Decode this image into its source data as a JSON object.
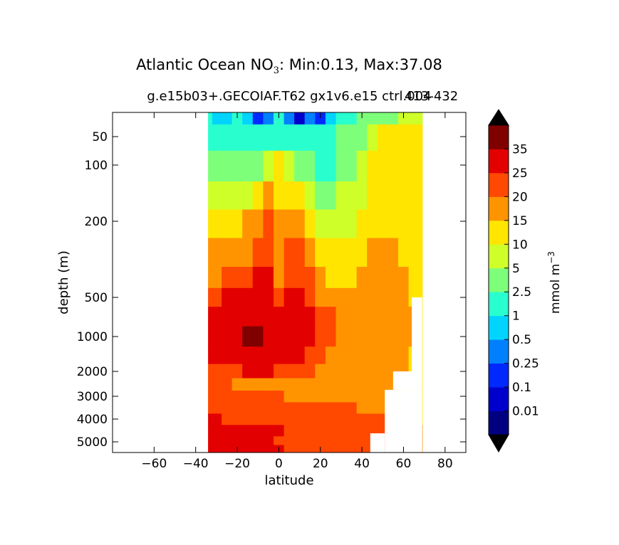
{
  "figure": {
    "title_prefix": "Atlantic Ocean NO",
    "title_sub": "3",
    "title_suffix": ": Min:0.13, Max:37.08",
    "subtitle": "g.e15b03+.GECOIAF.T62 gx1v6.e15 ctrl.004",
    "subtitle_overlap": "413-432"
  },
  "chart_data": {
    "type": "heatmap",
    "plot_style": "filled contour",
    "title": "Atlantic Ocean NO3: Min:0.13, Max:37.08",
    "subtitle": "g.e15b03+.GECOIAF.T62 gx1v6.e15 ctrl.004 413-432",
    "xlabel": "latitude",
    "ylabel": "depth (m)",
    "xlim": [
      -80,
      90
    ],
    "ylim": [
      5500,
      25
    ],
    "y_scale": "nonlinear (depth-stretched), increasing downward",
    "x_ticks": [
      -60,
      -40,
      -20,
      0,
      20,
      40,
      60,
      80
    ],
    "x_tick_labels": [
      "−60",
      "−40",
      "−20",
      "0",
      "20",
      "40",
      "60",
      "80"
    ],
    "y_ticks": [
      50,
      100,
      200,
      500,
      1000,
      2000,
      3000,
      4000,
      5000
    ],
    "y_tick_labels": [
      "50",
      "100",
      "200",
      "500",
      "1000",
      "2000",
      "3000",
      "4000",
      "5000"
    ],
    "data_extent_lat": [
      -34,
      69
    ],
    "min": 0.13,
    "max": 37.08,
    "colorbar": {
      "label": "mmol m",
      "label_exponent": "−3",
      "extend": "both",
      "levels": [
        0.01,
        0.1,
        0.25,
        0.5,
        1,
        2.5,
        5,
        10,
        15,
        20,
        25,
        35
      ],
      "tick_labels": [
        "0.01",
        "0.1",
        "0.25",
        "0.5",
        "1",
        "2.5",
        "5",
        "10",
        "15",
        "20",
        "25",
        "35"
      ],
      "colors": [
        "#000080",
        "#0000cd",
        "#0028ff",
        "#0080ff",
        "#00d4ff",
        "#29ffce",
        "#7dff7a",
        "#ceff29",
        "#ffe500",
        "#ff9400",
        "#ff4800",
        "#e30000",
        "#800000"
      ],
      "under_color": "#000000",
      "over_color": "#000000"
    },
    "depth_rows": [
      25,
      50,
      100,
      150,
      200,
      300,
      400,
      500,
      700,
      1000,
      1500,
      2000,
      2500,
      3000,
      3500,
      4000,
      4500,
      5000,
      5300
    ],
    "lat_cols": [
      -34,
      -30,
      -25,
      -20,
      -15,
      -10,
      -5,
      0,
      5,
      10,
      15,
      20,
      25,
      30,
      35,
      40,
      45,
      50,
      55,
      60,
      65,
      69
    ],
    "bands": [
      [
        5,
        4,
        4,
        5,
        4,
        2,
        3,
        5,
        3,
        1,
        3,
        2,
        4,
        5,
        5,
        6,
        6,
        6,
        6,
        7,
        7,
        7
      ],
      [
        5,
        5,
        5,
        5,
        5,
        5,
        5,
        5,
        5,
        5,
        5,
        5,
        5,
        6,
        6,
        6,
        7,
        8,
        8,
        8,
        8,
        8
      ],
      [
        6,
        6,
        6,
        6,
        6,
        6,
        7,
        8,
        7,
        6,
        6,
        5,
        5,
        6,
        6,
        7,
        8,
        8,
        8,
        8,
        8,
        8
      ],
      [
        7,
        7,
        7,
        7,
        7,
        8,
        9,
        8,
        8,
        8,
        7,
        6,
        6,
        7,
        7,
        7,
        8,
        8,
        8,
        8,
        8,
        8
      ],
      [
        8,
        8,
        8,
        8,
        9,
        9,
        10,
        9,
        9,
        9,
        8,
        7,
        7,
        7,
        7,
        8,
        8,
        8,
        8,
        8,
        8,
        8
      ],
      [
        9,
        9,
        9,
        9,
        9,
        10,
        10,
        9,
        10,
        10,
        9,
        8,
        8,
        8,
        8,
        8,
        9,
        9,
        9,
        8,
        8,
        8
      ],
      [
        9,
        9,
        10,
        10,
        10,
        11,
        11,
        9,
        10,
        10,
        10,
        9,
        8,
        8,
        8,
        9,
        9,
        9,
        9,
        9,
        8,
        8
      ],
      [
        10,
        10,
        11,
        11,
        11,
        11,
        11,
        10,
        11,
        11,
        10,
        9,
        9,
        9,
        9,
        9,
        9,
        9,
        9,
        9,
        8,
        8
      ],
      [
        11,
        11,
        11,
        11,
        11,
        11,
        11,
        11,
        11,
        11,
        11,
        10,
        10,
        9,
        9,
        9,
        9,
        9,
        9,
        9,
        9,
        8
      ],
      [
        11,
        11,
        11,
        11,
        12,
        12,
        11,
        11,
        11,
        11,
        11,
        10,
        10,
        9,
        9,
        9,
        9,
        9,
        9,
        9,
        9,
        8
      ],
      [
        11,
        11,
        11,
        11,
        11,
        11,
        11,
        11,
        11,
        11,
        10,
        10,
        9,
        9,
        9,
        9,
        9,
        9,
        9,
        9,
        8,
        8
      ],
      [
        10,
        10,
        10,
        10,
        11,
        11,
        11,
        10,
        10,
        10,
        10,
        9,
        9,
        9,
        9,
        9,
        9,
        9,
        9,
        9,
        8,
        8
      ],
      [
        10,
        10,
        10,
        9,
        9,
        9,
        9,
        9,
        9,
        9,
        9,
        9,
        9,
        9,
        9,
        9,
        9,
        9,
        9,
        8,
        8,
        8
      ],
      [
        10,
        10,
        10,
        10,
        10,
        10,
        10,
        10,
        9,
        9,
        9,
        9,
        9,
        9,
        9,
        9,
        9,
        9,
        8,
        8,
        8,
        8
      ],
      [
        10,
        10,
        10,
        10,
        10,
        10,
        10,
        10,
        10,
        10,
        10,
        10,
        10,
        10,
        10,
        9,
        9,
        9,
        9,
        8,
        8,
        8
      ],
      [
        11,
        11,
        10,
        10,
        10,
        10,
        10,
        10,
        10,
        10,
        10,
        10,
        10,
        10,
        10,
        10,
        10,
        10,
        9,
        9,
        8,
        8
      ],
      [
        11,
        11,
        11,
        11,
        11,
        11,
        11,
        11,
        10,
        10,
        10,
        10,
        10,
        10,
        10,
        10,
        10,
        10,
        10,
        9,
        9,
        9
      ],
      [
        11,
        11,
        11,
        11,
        11,
        11,
        11,
        10,
        10,
        10,
        10,
        10,
        10,
        10,
        10,
        10,
        10,
        10,
        10,
        10,
        9,
        9
      ],
      [
        11,
        11,
        11,
        11,
        11,
        11,
        11,
        11,
        10,
        10,
        10,
        10,
        10,
        10,
        10,
        10,
        10,
        10,
        10,
        10,
        9,
        9
      ]
    ],
    "masked_regions": [
      {
        "lat_min": 51,
        "lat_max": 69,
        "depth_min": 2700,
        "depth_max": 5500
      },
      {
        "lat_min": 44,
        "lat_max": 51,
        "depth_min": 4600,
        "depth_max": 5500
      },
      {
        "lat_min": 55,
        "lat_max": 69,
        "depth_min": 2000,
        "depth_max": 2700
      },
      {
        "lat_min": 64,
        "lat_max": 69,
        "depth_min": 500,
        "depth_max": 2000
      }
    ]
  }
}
